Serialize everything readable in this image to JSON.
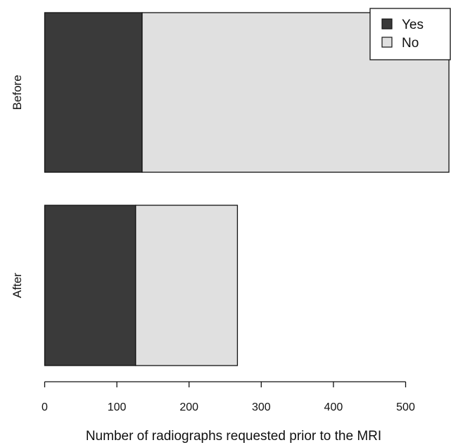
{
  "chart_data": {
    "type": "bar",
    "orientation": "horizontal",
    "stacked": true,
    "categories": [
      "Before",
      "After"
    ],
    "series": [
      {
        "name": "Yes",
        "values": [
          135,
          126
        ],
        "color": "#3a3a3a"
      },
      {
        "name": "No",
        "values": [
          425,
          141
        ],
        "color": "#e0e0e0"
      }
    ],
    "xlabel": "Number of radiographs requested prior to the MRI",
    "ylabel": "",
    "xlim": [
      0,
      560
    ],
    "xticks": [
      0,
      100,
      200,
      300,
      400,
      500
    ],
    "grid": false,
    "legend_position": "top-right"
  }
}
